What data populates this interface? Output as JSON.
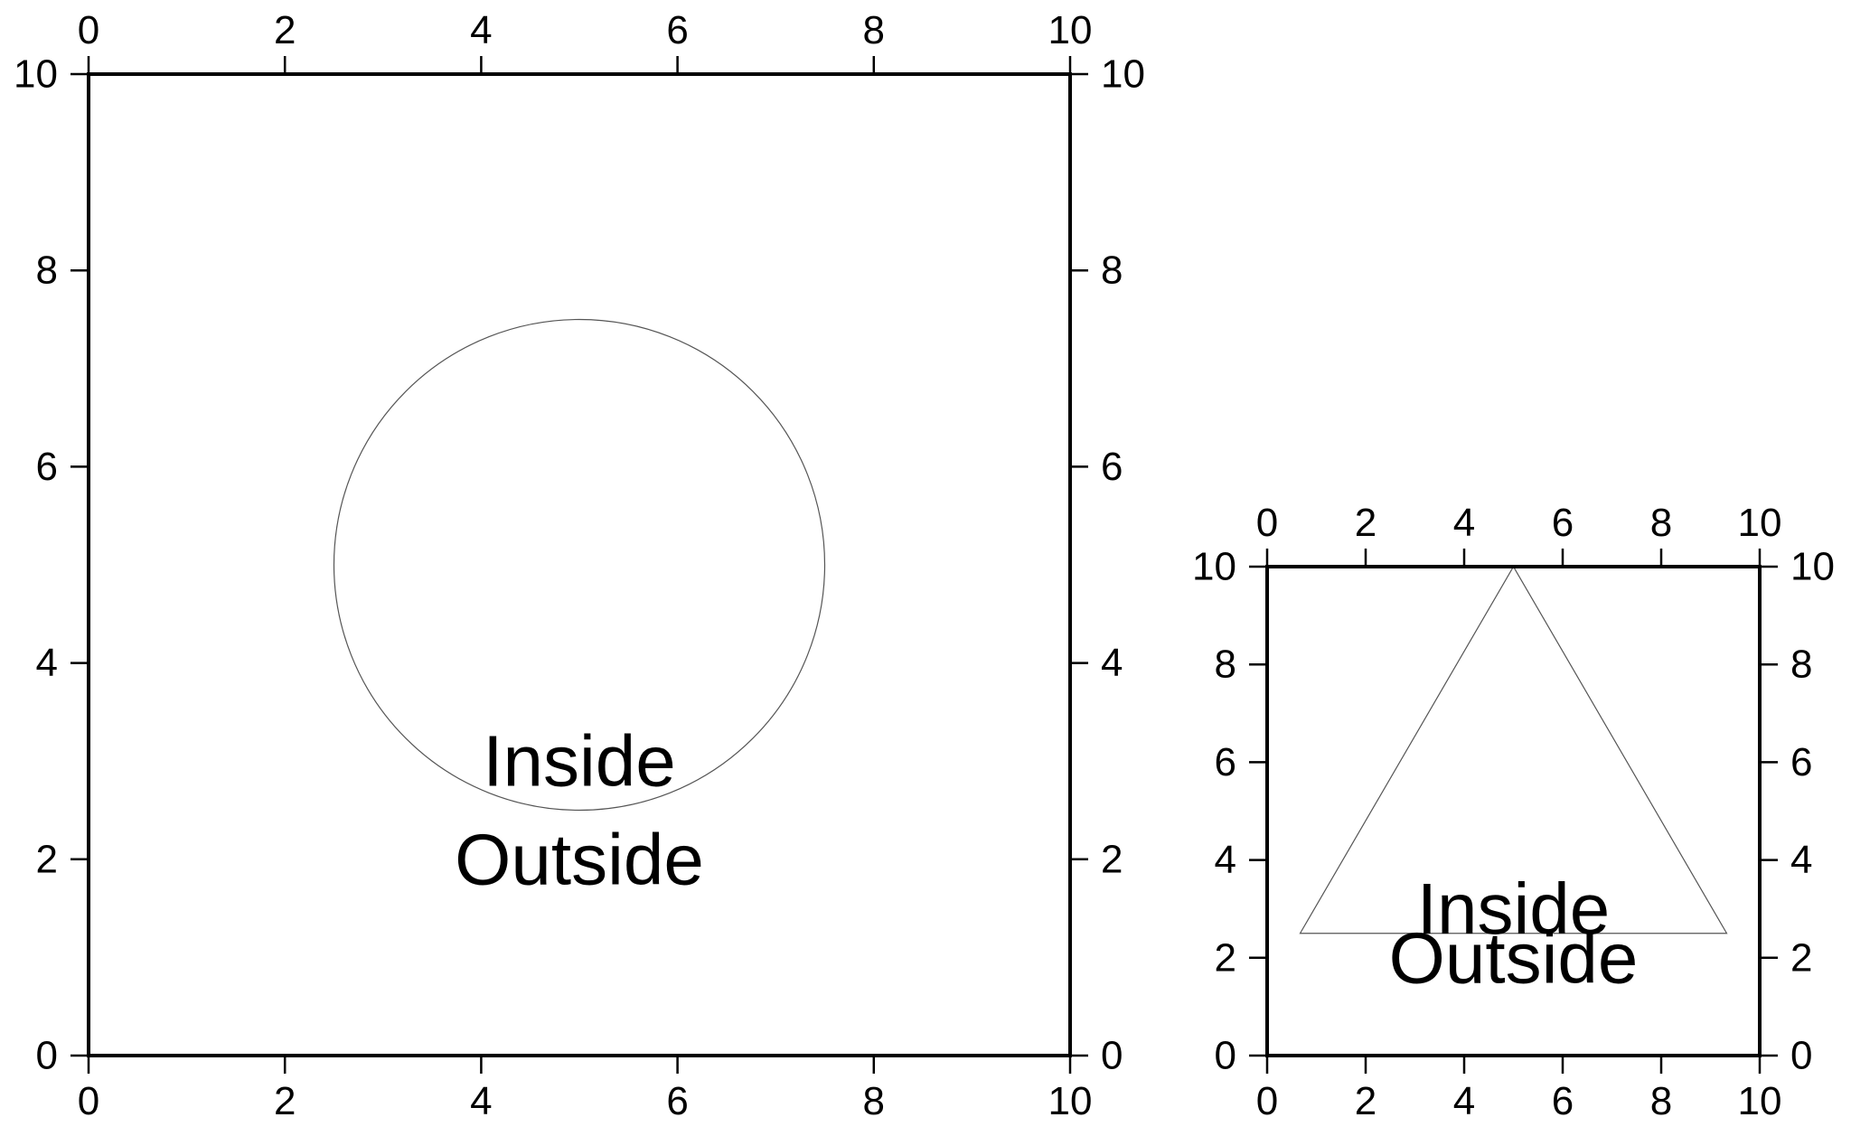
{
  "chart_data": [
    {
      "type": "scatter",
      "title": "",
      "xlabel": "",
      "ylabel": "",
      "xlim": [
        0,
        10
      ],
      "ylim": [
        0,
        10
      ],
      "xticks": [
        0,
        2,
        4,
        6,
        8,
        10
      ],
      "yticks": [
        0,
        2,
        4,
        6,
        8,
        10
      ],
      "grid": false,
      "frame_on_all_sides": true,
      "tick_labels_on": [
        "bottom",
        "top",
        "left",
        "right"
      ],
      "shape": {
        "kind": "circle",
        "center": [
          5,
          5
        ],
        "radius": 2.5,
        "stroke": "#555555"
      },
      "annotations": [
        {
          "text": "Inside",
          "x": 5,
          "y": 3
        },
        {
          "text": "Outside",
          "x": 5,
          "y": 2
        }
      ]
    },
    {
      "type": "scatter",
      "title": "",
      "xlabel": "",
      "ylabel": "",
      "xlim": [
        0,
        10
      ],
      "ylim": [
        0,
        10
      ],
      "xticks": [
        0,
        2,
        4,
        6,
        8,
        10
      ],
      "yticks": [
        0,
        2,
        4,
        6,
        8,
        10
      ],
      "grid": false,
      "frame_on_all_sides": true,
      "tick_labels_on": [
        "bottom",
        "top",
        "left",
        "right"
      ],
      "shape": {
        "kind": "polygon",
        "points": [
          [
            0.67,
            2.5
          ],
          [
            5,
            10
          ],
          [
            9.33,
            2.5
          ]
        ],
        "stroke": "#555555"
      },
      "annotations": [
        {
          "text": "Inside",
          "x": 5,
          "y": 3
        },
        {
          "text": "Outside",
          "x": 5,
          "y": 2
        }
      ]
    }
  ]
}
